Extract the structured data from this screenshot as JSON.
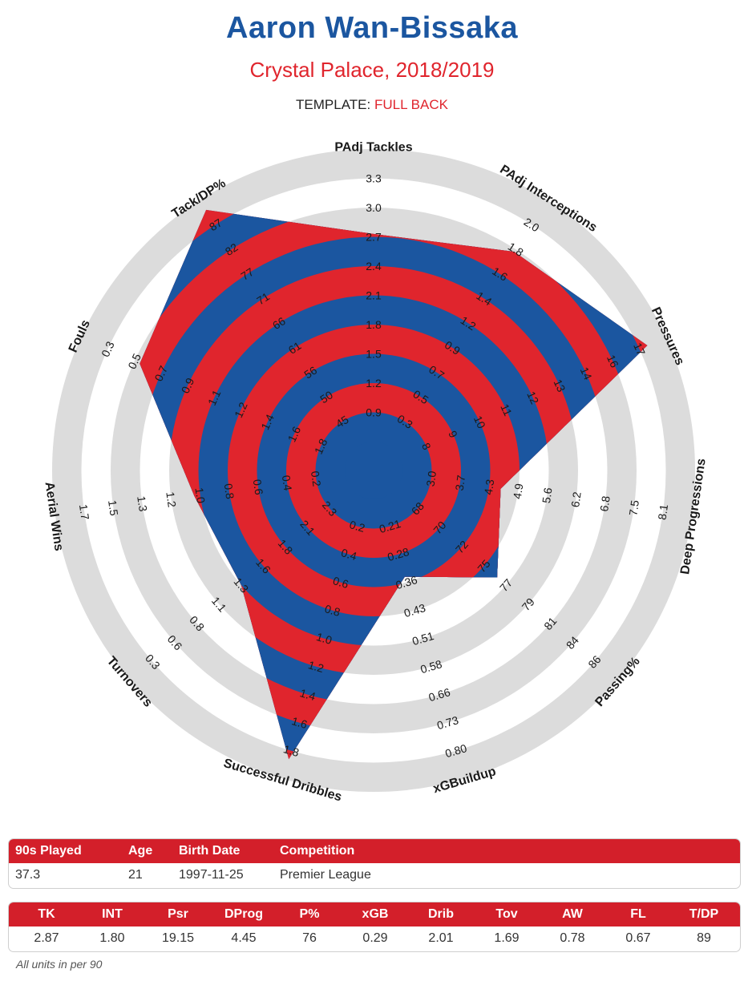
{
  "header": {
    "title": "Aaron Wan-Bissaka",
    "subtitle": "Crystal Palace, 2018/2019",
    "template_label": "TEMPLATE:",
    "template_value": "FULL BACK"
  },
  "colors": {
    "blue": "#1b56a0",
    "red": "#e0252d",
    "ring": "#dcdcdc"
  },
  "chart_data": {
    "type": "radar",
    "ring_count": 10,
    "axes": [
      {
        "label": "PAdj Tackles",
        "ticks": [
          "0.9",
          "1.2",
          "1.5",
          "1.8",
          "2.1",
          "2.4",
          "2.7",
          "3.0",
          "3.3"
        ],
        "value_ring": 7.1
      },
      {
        "label": "PAdj Interceptions",
        "ticks": [
          "0.3",
          "0.5",
          "0.7",
          "0.9",
          "1.2",
          "1.4",
          "1.6",
          "1.8",
          "2.0"
        ],
        "value_ring": 7.9
      },
      {
        "label": "Pressures",
        "ticks": [
          "8",
          "9",
          "10",
          "11",
          "12",
          "13",
          "14",
          "16",
          "17"
        ],
        "value_ring": 9.3
      },
      {
        "label": "Deep Progressions",
        "ticks": [
          "3.0",
          "3.7",
          "4.3",
          "4.9",
          "5.6",
          "6.2",
          "6.8",
          "7.5",
          "8.1"
        ],
        "value_ring": 3.4
      },
      {
        "label": "Passing%",
        "ticks": [
          "68",
          "70",
          "72",
          "75",
          "77",
          "79",
          "81",
          "84",
          "86"
        ],
        "value_ring": 4.6
      },
      {
        "label": "xGBuildup",
        "ticks": [
          "0.21",
          "0.28",
          "0.36",
          "0.43",
          "0.51",
          "0.58",
          "0.66",
          "0.73",
          "0.80"
        ],
        "value_ring": 2.8
      },
      {
        "label": "Successful Dribbles",
        "ticks": [
          "0.2",
          "0.4",
          "0.6",
          "0.8",
          "1.0",
          "1.2",
          "1.4",
          "1.6",
          "1.8"
        ],
        "value_ring": 9.3
      },
      {
        "label": "Turnovers",
        "ticks": [
          "2.3",
          "2.1",
          "1.8",
          "1.6",
          "1.3",
          "1.1",
          "0.8",
          "0.6",
          "0.3"
        ],
        "value_ring": 5.0
      },
      {
        "label": "Aerial Wins",
        "ticks": [
          "0.2",
          "0.4",
          "0.6",
          "0.8",
          "1.0",
          "1.2",
          "1.3",
          "1.5",
          "1.7"
        ],
        "value_ring": 5.2
      },
      {
        "label": "Fouls",
        "ticks": [
          "1.8",
          "1.6",
          "1.4",
          "1.2",
          "1.1",
          "0.9",
          "0.7",
          "0.5",
          "0.3"
        ],
        "value_ring": 7.8
      },
      {
        "label": "Tack/DP%",
        "ticks": [
          "45",
          "50",
          "56",
          "61",
          "66",
          "71",
          "77",
          "82",
          "87"
        ],
        "value_ring": 9.6
      }
    ]
  },
  "info_table": {
    "headers": [
      "90s Played",
      "Age",
      "Birth Date",
      "Competition"
    ],
    "values": [
      "37.3",
      "21",
      "1997-11-25",
      "Premier League"
    ]
  },
  "stats_table": {
    "headers": [
      "TK",
      "INT",
      "Psr",
      "DProg",
      "P%",
      "xGB",
      "Drib",
      "Tov",
      "AW",
      "FL",
      "T/DP"
    ],
    "values": [
      "2.87",
      "1.80",
      "19.15",
      "4.45",
      "76",
      "0.29",
      "2.01",
      "1.69",
      "0.78",
      "0.67",
      "89"
    ]
  },
  "footnote": "All units in per 90"
}
